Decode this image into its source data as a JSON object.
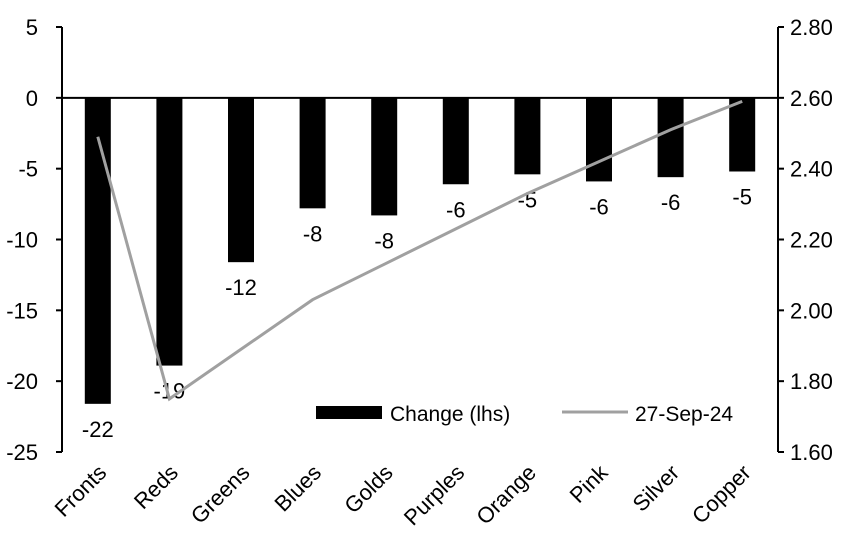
{
  "chart_data": {
    "type": "bar",
    "categories": [
      "Fronts",
      "Reds",
      "Greens",
      "Blues",
      "Golds",
      "Purples",
      "Orange",
      "Pink",
      "Silver",
      "Copper"
    ],
    "series": [
      {
        "name": "Change (lhs)",
        "type": "bar",
        "axis": "left",
        "color": "#000000",
        "values": [
          -21.6,
          -18.9,
          -11.6,
          -7.8,
          -8.3,
          -6.1,
          -5.4,
          -5.9,
          -5.6,
          -5.2
        ],
        "labels": [
          "-22",
          "-19",
          "-12",
          "-8",
          "-8",
          "-6",
          "-5",
          "-6",
          "-6",
          "-5"
        ]
      },
      {
        "name": "27-Sep-24",
        "type": "line",
        "axis": "right",
        "color": "#a0a0a0",
        "values": [
          2.49,
          1.75,
          1.89,
          2.03,
          2.13,
          2.23,
          2.33,
          2.42,
          2.51,
          2.59
        ]
      }
    ],
    "left_axis": {
      "ylim": [
        -25,
        5
      ],
      "ticks": [
        "5",
        "0",
        "-5",
        "-10",
        "-15",
        "-20",
        "-25"
      ]
    },
    "right_axis": {
      "ylim": [
        1.6,
        2.8
      ],
      "ticks": [
        "2.80",
        "2.60",
        "2.40",
        "2.20",
        "2.00",
        "1.80",
        "1.60"
      ]
    },
    "legend": {
      "placement": "bottom-right"
    },
    "grid": false
  }
}
